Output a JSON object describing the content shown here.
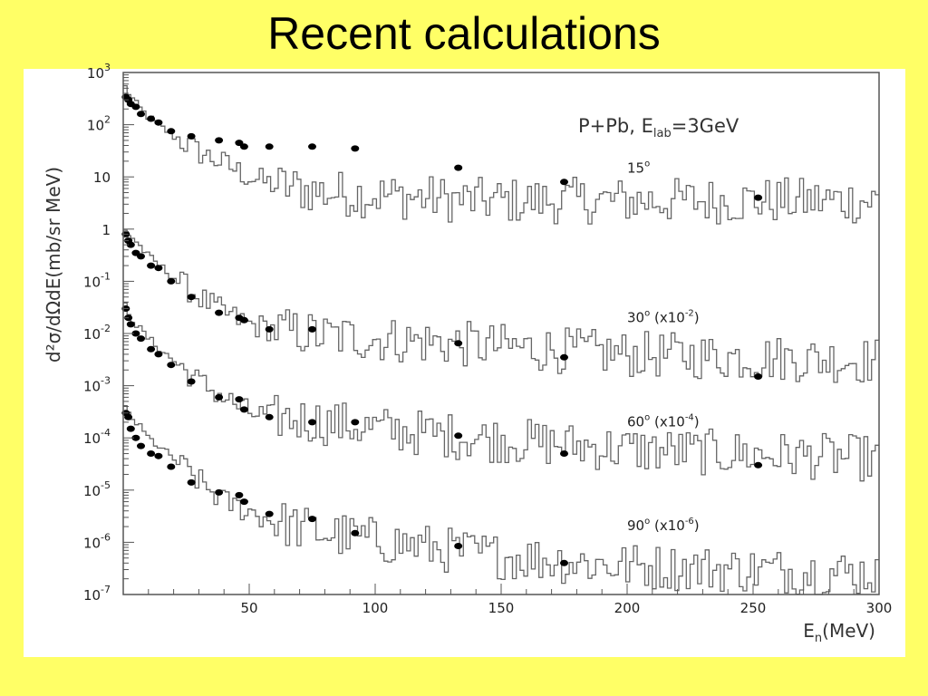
{
  "slide": {
    "title": "Recent calculations"
  },
  "chart_data": {
    "type": "line",
    "title": "P+Pb,  E_lab=3GeV",
    "title_parts": {
      "main": "P+Pb,  E",
      "sub": "lab",
      "tail": "=3GeV"
    },
    "xlabel": "E_n(MeV)",
    "xlabel_parts": {
      "main": "E",
      "sub": "n",
      "tail": "(MeV)"
    },
    "ylabel": "d²σ/dΩdE(mb/sr MeV)",
    "xlim": [
      0,
      300
    ],
    "ylim": [
      1e-07,
      1000
    ],
    "yscale": "log",
    "x_ticks": [
      50,
      100,
      150,
      200,
      250,
      300
    ],
    "y_ticks": [
      {
        "value": 1000,
        "label": "10",
        "exp": "3"
      },
      {
        "value": 100,
        "label": "10",
        "exp": "2"
      },
      {
        "value": 10,
        "label": "10",
        "exp": ""
      },
      {
        "value": 1,
        "label": "1",
        "exp": ""
      },
      {
        "value": 0.1,
        "label": "10",
        "exp": "-1"
      },
      {
        "value": 0.01,
        "label": "10",
        "exp": "-2"
      },
      {
        "value": 0.001,
        "label": "10",
        "exp": "-3"
      },
      {
        "value": 0.0001,
        "label": "10",
        "exp": "-4"
      },
      {
        "value": 1e-05,
        "label": "10",
        "exp": "-5"
      },
      {
        "value": 1e-06,
        "label": "10",
        "exp": "-6"
      },
      {
        "value": 1e-07,
        "label": "10",
        "exp": "-7"
      }
    ],
    "grid": false,
    "series": [
      {
        "name": "15°",
        "annotation": {
          "main": "15",
          "sup": "o",
          "tail": ""
        },
        "annotation_at": {
          "x": 200,
          "y": 12
        },
        "experimental_points": [
          [
            1,
            340
          ],
          [
            2,
            300
          ],
          [
            3,
            250
          ],
          [
            5,
            220
          ],
          [
            7,
            160
          ],
          [
            11,
            130
          ],
          [
            14,
            110
          ],
          [
            19,
            75
          ],
          [
            27,
            60
          ],
          [
            38,
            50
          ],
          [
            46,
            45
          ],
          [
            48,
            38
          ],
          [
            58,
            38
          ],
          [
            75,
            38
          ],
          [
            92,
            35
          ],
          [
            133,
            15
          ],
          [
            175,
            8
          ],
          [
            252,
            4
          ]
        ],
        "histogram_anchor": [
          [
            0,
            600
          ],
          [
            5,
            250
          ],
          [
            10,
            140
          ],
          [
            20,
            60
          ],
          [
            30,
            30
          ],
          [
            40,
            18
          ],
          [
            50,
            10
          ],
          [
            60,
            7
          ],
          [
            80,
            5
          ],
          [
            100,
            4.5
          ],
          [
            140,
            3.5
          ],
          [
            200,
            3.5
          ],
          [
            300,
            3.5
          ]
        ]
      },
      {
        "name": "30° (x10⁻²)",
        "annotation": {
          "main": "30",
          "sup": "o",
          "tail": " (x10",
          "exp": "-2",
          "close": ")"
        },
        "annotation_at": {
          "x": 200,
          "y": 0.0165
        },
        "experimental_points": [
          [
            1,
            0.8
          ],
          [
            2,
            0.6
          ],
          [
            3,
            0.5
          ],
          [
            5,
            0.35
          ],
          [
            7,
            0.3
          ],
          [
            11,
            0.2
          ],
          [
            14,
            0.18
          ],
          [
            19,
            0.1
          ],
          [
            27,
            0.05
          ],
          [
            38,
            0.025
          ],
          [
            46,
            0.02
          ],
          [
            48,
            0.018
          ],
          [
            58,
            0.012
          ],
          [
            75,
            0.012
          ],
          [
            133,
            0.0065
          ],
          [
            175,
            0.0035
          ],
          [
            252,
            0.0015
          ]
        ],
        "histogram_anchor": [
          [
            0,
            1.0
          ],
          [
            5,
            0.6
          ],
          [
            10,
            0.3
          ],
          [
            20,
            0.12
          ],
          [
            30,
            0.05
          ],
          [
            40,
            0.025
          ],
          [
            50,
            0.015
          ],
          [
            60,
            0.012
          ],
          [
            80,
            0.009
          ],
          [
            100,
            0.008
          ],
          [
            140,
            0.006
          ],
          [
            200,
            0.004
          ],
          [
            300,
            0.003
          ]
        ]
      },
      {
        "name": "60° (x10⁻⁴)",
        "annotation": {
          "main": "60",
          "sup": "o",
          "tail": " (x10",
          "exp": "-4",
          "close": ")"
        },
        "annotation_at": {
          "x": 200,
          "y": 0.000165
        },
        "experimental_points": [
          [
            1,
            0.03
          ],
          [
            2,
            0.02
          ],
          [
            3,
            0.015
          ],
          [
            5,
            0.01
          ],
          [
            7,
            0.008
          ],
          [
            11,
            0.005
          ],
          [
            14,
            0.004
          ],
          [
            19,
            0.0025
          ],
          [
            27,
            0.0012
          ],
          [
            38,
            0.0006
          ],
          [
            46,
            0.00055
          ],
          [
            48,
            0.00035
          ],
          [
            58,
            0.00025
          ],
          [
            75,
            0.0002
          ],
          [
            92,
            0.0002
          ],
          [
            133,
            0.00011
          ],
          [
            175,
            5e-05
          ],
          [
            252,
            3e-05
          ]
        ],
        "histogram_anchor": [
          [
            0,
            0.04
          ],
          [
            5,
            0.015
          ],
          [
            10,
            0.008
          ],
          [
            20,
            0.003
          ],
          [
            30,
            0.0012
          ],
          [
            40,
            0.0006
          ],
          [
            50,
            0.0003
          ],
          [
            60,
            0.00025
          ],
          [
            80,
            0.0002
          ],
          [
            100,
            0.00015
          ],
          [
            140,
            0.0001
          ],
          [
            200,
            6e-05
          ],
          [
            300,
            4e-05
          ]
        ]
      },
      {
        "name": "90° (x10⁻⁶)",
        "annotation": {
          "main": "90",
          "sup": "o",
          "tail": " (x10",
          "exp": "-6",
          "close": ")"
        },
        "annotation_at": {
          "x": 200,
          "y": 1.7e-06
        },
        "experimental_points": [
          [
            1,
            0.0003
          ],
          [
            2,
            0.00025
          ],
          [
            3,
            0.00015
          ],
          [
            5,
            0.0001
          ],
          [
            7,
            7e-05
          ],
          [
            11,
            5e-05
          ],
          [
            14,
            4.5e-05
          ],
          [
            19,
            2.8e-05
          ],
          [
            27,
            1.4e-05
          ],
          [
            38,
            9e-06
          ],
          [
            46,
            8e-06
          ],
          [
            48,
            6e-06
          ],
          [
            58,
            3.5e-06
          ],
          [
            75,
            2.8e-06
          ],
          [
            92,
            1.5e-06
          ],
          [
            133,
            8.5e-07
          ],
          [
            175,
            4e-07
          ]
        ],
        "histogram_anchor": [
          [
            0,
            0.0004
          ],
          [
            5,
            0.0002
          ],
          [
            10,
            0.0001
          ],
          [
            20,
            4e-05
          ],
          [
            30,
            1.5e-05
          ],
          [
            40,
            6e-06
          ],
          [
            50,
            4e-06
          ],
          [
            60,
            2.5e-06
          ],
          [
            80,
            1.5e-06
          ],
          [
            100,
            1.1e-06
          ],
          [
            140,
            6e-07
          ],
          [
            200,
            3.5e-07
          ],
          [
            300,
            2.5e-07
          ]
        ]
      }
    ]
  }
}
